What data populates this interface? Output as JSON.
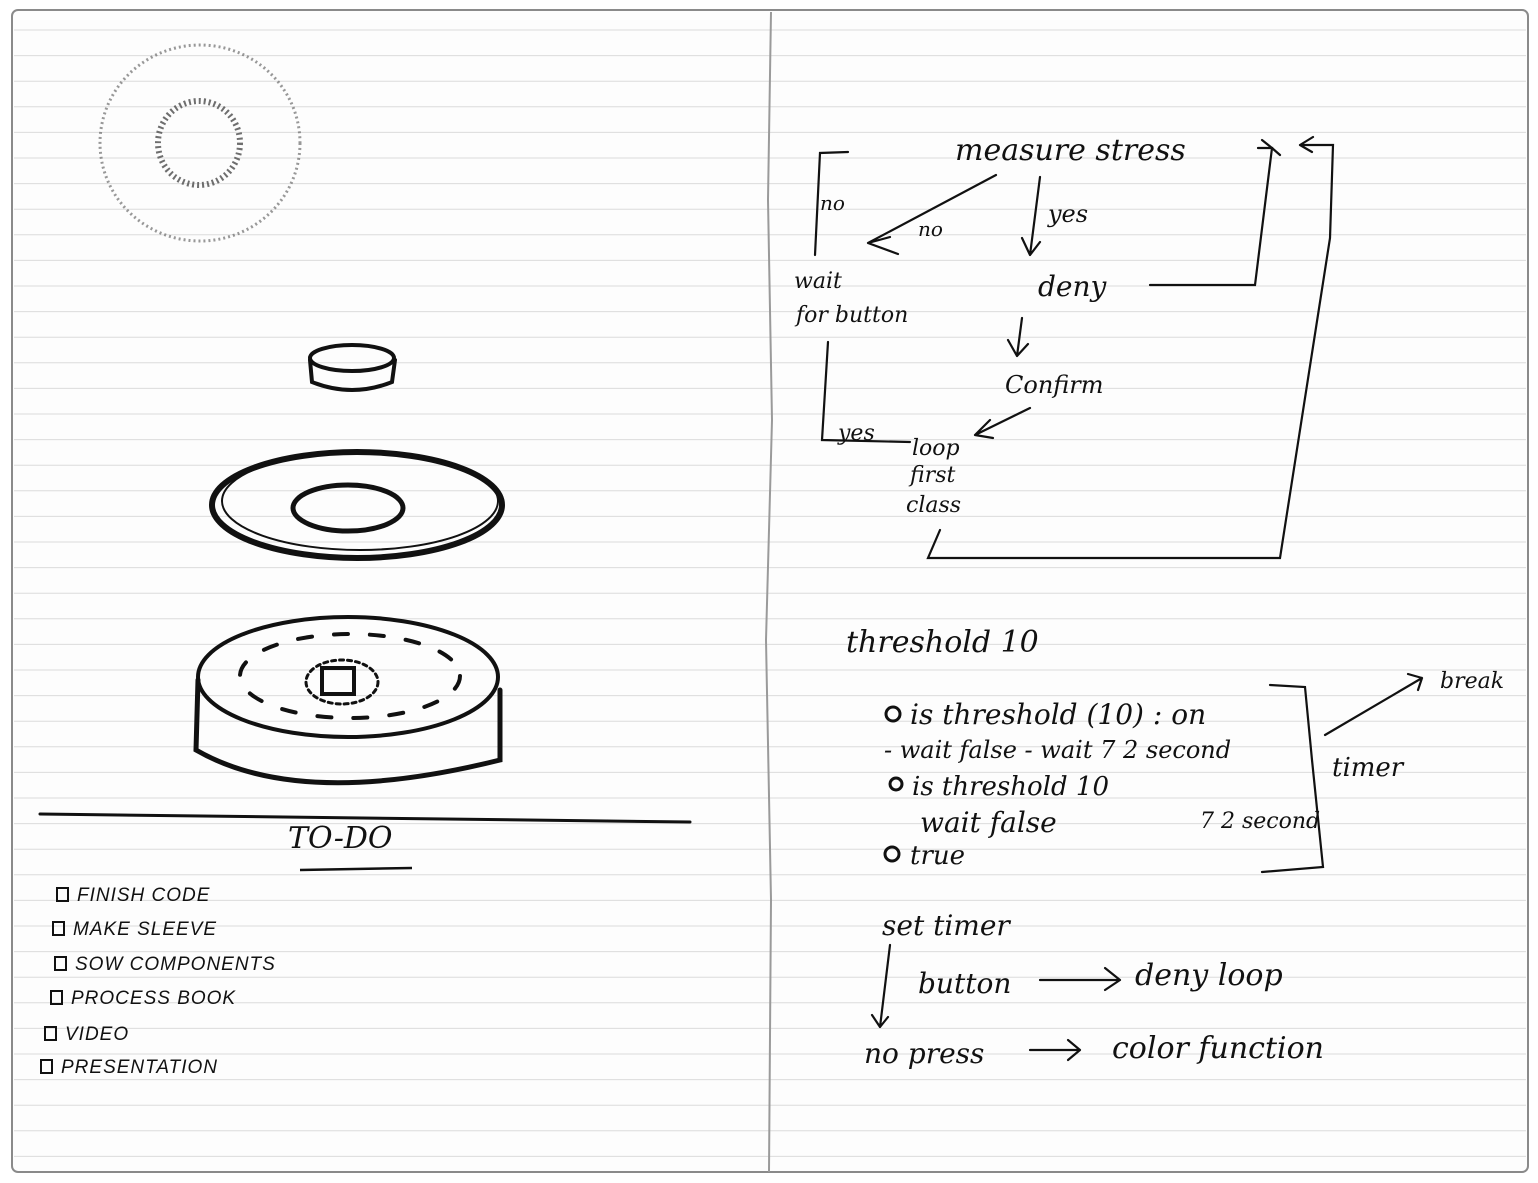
{
  "sketch": {
    "todo_title": "TO-DO",
    "todo_items": [
      "FINISH CODE",
      "MAKE SLEEVE",
      "SOW COMPONENTS",
      "PROCESS BOOK",
      "VIDEO",
      "PRESENTATION"
    ]
  },
  "flowchart": {
    "measure": "measure stress",
    "no_left": "no",
    "no_diag": "no",
    "yes_down": "yes",
    "wait": "wait",
    "for_button": "for button",
    "deny": "deny",
    "confirm": "Confirm",
    "yes_bottom": "yes",
    "loop": "loop",
    "first": "first",
    "class": "class"
  },
  "threshold_notes": {
    "threshold": "threshold 10",
    "line1": "is threshold (10) : on",
    "line2": "- wait  false - wait 7 2 second",
    "line3": "is threshold 10",
    "line4": "wait false",
    "line4_right": "7 2 second",
    "line5": "true",
    "break": "break",
    "timer": "timer"
  },
  "timer_notes": {
    "set_timer": "set timer",
    "button": "button",
    "deny_loop": "deny loop",
    "no_press": "no press",
    "color_function": "color function"
  }
}
